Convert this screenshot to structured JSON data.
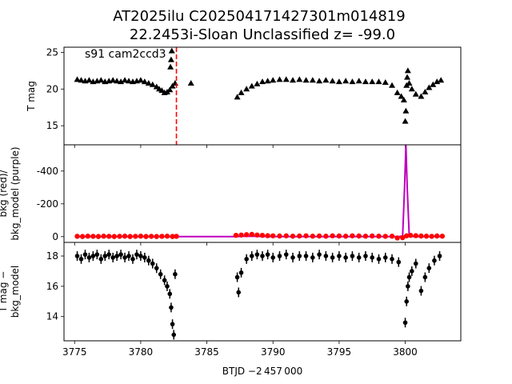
{
  "chart_data": {
    "type": "scatter",
    "title_line1": "AT2025ilu  C202504171427301m014819",
    "title_line2": "22.2453i-Sloan Unclassified z= -99.0",
    "xlabel": "BTJD −2 457 000",
    "xlim": [
      3774.2,
      3804.2
    ],
    "xticks": [
      3775,
      3780,
      3785,
      3790,
      3795,
      3800
    ],
    "annotation": "s91 cam2ccd3",
    "event_time": 3782.7,
    "colors": {
      "tmag": "#000000",
      "bkg": "#ff0000",
      "bkg_model": "#bf00bf",
      "event_line": "#ff0000"
    },
    "panels": [
      {
        "id": "tmag",
        "ylabel": "T mag",
        "ylim": [
          25.7,
          12.4
        ],
        "yticks": [
          15,
          20,
          25
        ],
        "series": [
          {
            "marker": "triangle",
            "x": [
              3775.2,
              3775.5,
              3775.8,
              3776.1,
              3776.4,
              3776.7,
              3777.0,
              3777.3,
              3777.6,
              3777.9,
              3778.2,
              3778.5,
              3778.8,
              3779.1,
              3779.4,
              3779.7,
              3780.0,
              3780.3,
              3780.6,
              3780.9,
              3781.2,
              3781.4,
              3781.6,
              3781.8,
              3782.0,
              3782.2,
              3782.4,
              3782.6,
              3782.25,
              3782.3,
              3782.35,
              3783.8,
              3787.3,
              3787.6,
              3788.0,
              3788.4,
              3788.8,
              3789.2,
              3789.6,
              3790.0,
              3790.5,
              3791.0,
              3791.5,
              3792.0,
              3792.5,
              3793.0,
              3793.5,
              3794.0,
              3794.5,
              3795.0,
              3795.5,
              3796.0,
              3796.5,
              3797.0,
              3797.5,
              3798.0,
              3798.5,
              3799.0,
              3799.4,
              3799.7,
              3799.9,
              3800.0,
              3800.05,
              3800.1,
              3800.15,
              3800.2,
              3800.3,
              3800.5,
              3800.8,
              3801.2,
              3801.5,
              3801.8,
              3802.1,
              3802.4,
              3802.7
            ],
            "y": [
              21.3,
              21.2,
              21.1,
              21.2,
              21.0,
              21.1,
              21.2,
              21.0,
              21.1,
              21.2,
              21.1,
              21.0,
              21.2,
              21.1,
              21.0,
              21.1,
              21.2,
              21.0,
              20.8,
              20.6,
              20.3,
              20.0,
              19.8,
              19.5,
              19.6,
              19.9,
              20.4,
              20.8,
              23.0,
              24.0,
              25.2,
              20.8,
              18.9,
              19.5,
              20.0,
              20.4,
              20.7,
              21.0,
              21.1,
              21.2,
              21.3,
              21.3,
              21.2,
              21.3,
              21.2,
              21.2,
              21.1,
              21.2,
              21.1,
              21.0,
              21.1,
              21.0,
              21.1,
              21.0,
              21.0,
              21.0,
              20.9,
              20.5,
              19.5,
              19.0,
              18.5,
              15.6,
              17.0,
              20.5,
              21.6,
              22.5,
              20.8,
              20.0,
              19.3,
              19.0,
              19.6,
              20.2,
              20.6,
              21.0,
              21.2
            ]
          }
        ]
      },
      {
        "id": "bkg",
        "ylabel_line1": "bkg (red)/",
        "ylabel_line2": "bkg_model (purple)",
        "ylim": [
          -560,
          35
        ],
        "yticks": [
          0,
          -200,
          -400
        ],
        "series": [
          {
            "name": "bkg",
            "marker": "circle",
            "x": [
              3775.2,
              3775.6,
              3776.0,
              3776.4,
              3776.8,
              3777.2,
              3777.6,
              3778.0,
              3778.4,
              3778.8,
              3779.2,
              3779.6,
              3780.0,
              3780.4,
              3780.8,
              3781.2,
              3781.6,
              3782.0,
              3782.4,
              3782.7,
              3787.2,
              3787.6,
              3788.0,
              3788.4,
              3788.8,
              3789.2,
              3789.6,
              3790.0,
              3790.5,
              3791.0,
              3791.5,
              3792.0,
              3792.5,
              3793.0,
              3793.5,
              3794.0,
              3794.5,
              3795.0,
              3795.5,
              3796.0,
              3796.5,
              3797.0,
              3797.5,
              3798.0,
              3798.5,
              3799.0,
              3799.4,
              3799.8,
              3800.1,
              3800.4,
              3800.8,
              3801.2,
              3801.6,
              3802.0,
              3802.4,
              3802.8
            ],
            "y": [
              -2,
              -1,
              -3,
              -2,
              -1,
              -3,
              -2,
              -1,
              -2,
              -3,
              -1,
              -2,
              -3,
              -1,
              -2,
              -1,
              -2,
              -3,
              -1,
              -2,
              -8,
              -10,
              -12,
              -14,
              -10,
              -8,
              -6,
              -5,
              -4,
              -5,
              -3,
              -4,
              -5,
              -3,
              -4,
              -3,
              -5,
              -4,
              -3,
              -5,
              -4,
              -3,
              -4,
              -3,
              -2,
              -3,
              8,
              6,
              -5,
              -8,
              -6,
              -4,
              -3,
              -2,
              -4,
              -3
            ]
          }
        ],
        "model": {
          "name": "bkg_model",
          "x": [
            3775.2,
            3782.8,
            3787.2,
            3788.0,
            3790.0,
            3799.5,
            3799.8,
            3799.95,
            3800.05,
            3800.15,
            3800.3,
            3800.6,
            3801.0,
            3802.8
          ],
          "y": [
            0,
            0,
            0,
            -3,
            0,
            0,
            -5,
            -300,
            -560,
            -300,
            -10,
            0,
            0,
            0
          ]
        }
      },
      {
        "id": "diff",
        "ylabel_line1": "T mag −",
        "ylabel_line2": "bkg_model",
        "ylim": [
          18.9,
          12.4
        ],
        "yticks": [
          14,
          16,
          18
        ],
        "series": [
          {
            "marker": "circle-errorbar",
            "x": [
              3775.2,
              3775.5,
              3775.8,
              3776.1,
              3776.4,
              3776.7,
              3777.0,
              3777.3,
              3777.6,
              3777.9,
              3778.2,
              3778.5,
              3778.8,
              3779.1,
              3779.4,
              3779.7,
              3780.0,
              3780.3,
              3780.6,
              3780.9,
              3781.2,
              3781.5,
              3781.8,
              3782.0,
              3782.2,
              3782.3,
              3782.4,
              3782.5,
              3782.6,
              3787.3,
              3787.4,
              3787.6,
              3788.0,
              3788.4,
              3788.8,
              3789.2,
              3789.6,
              3790.0,
              3790.5,
              3791.0,
              3791.5,
              3792.0,
              3792.5,
              3793.0,
              3793.5,
              3794.0,
              3794.5,
              3795.0,
              3795.5,
              3796.0,
              3796.5,
              3797.0,
              3797.5,
              3798.0,
              3798.5,
              3799.0,
              3799.5,
              3800.0,
              3800.1,
              3800.2,
              3800.3,
              3800.5,
              3800.8,
              3801.2,
              3801.5,
              3801.8,
              3802.2,
              3802.6
            ],
            "y": [
              18.0,
              17.8,
              18.1,
              17.9,
              18.0,
              18.1,
              17.8,
              18.0,
              18.1,
              17.9,
              18.0,
              18.1,
              17.9,
              18.0,
              17.8,
              18.1,
              18.0,
              17.9,
              17.7,
              17.5,
              17.2,
              16.8,
              16.4,
              16.0,
              15.5,
              14.6,
              13.5,
              12.8,
              16.8,
              16.6,
              15.6,
              16.9,
              17.8,
              18.0,
              18.1,
              18.0,
              18.1,
              17.9,
              18.0,
              18.1,
              17.9,
              18.0,
              18.0,
              17.9,
              18.1,
              18.0,
              17.9,
              18.0,
              17.9,
              18.0,
              17.9,
              18.0,
              17.9,
              17.8,
              17.9,
              17.8,
              17.6,
              13.6,
              15.0,
              16.0,
              16.6,
              17.0,
              17.5,
              15.7,
              16.6,
              17.2,
              17.7,
              18.0
            ]
          }
        ]
      }
    ]
  }
}
